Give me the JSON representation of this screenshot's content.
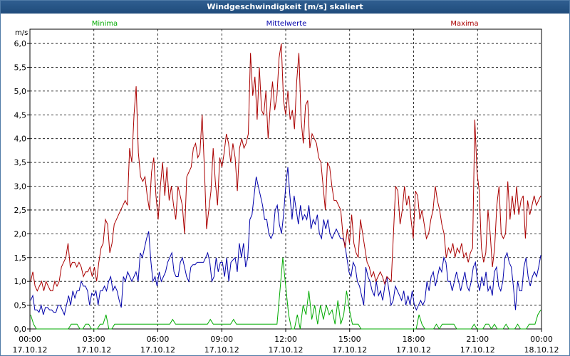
{
  "window": {
    "title": "Windgeschwindigkeit [m/s] skaliert"
  },
  "chart_data": {
    "type": "line",
    "ylabel": "m/s",
    "ylim": [
      0,
      6.3
    ],
    "yticks": [
      "0,0",
      "0,5",
      "1,0",
      "1,5",
      "2,0",
      "2,5",
      "3,0",
      "3,5",
      "4,0",
      "4,5",
      "5,0",
      "5,5",
      "6,0"
    ],
    "xticks": [
      {
        "time": "00:00",
        "date": "17.10.12"
      },
      {
        "time": "03:00",
        "date": "17.10.12"
      },
      {
        "time": "06:00",
        "date": "17.10.12"
      },
      {
        "time": "09:00",
        "date": "17.10.12"
      },
      {
        "time": "12:00",
        "date": "17.10.12"
      },
      {
        "time": "15:00",
        "date": "17.10.12"
      },
      {
        "time": "18:00",
        "date": "17.10.12"
      },
      {
        "time": "21:00",
        "date": "17.10.12"
      },
      {
        "time": "00:00",
        "date": "18.10.12"
      }
    ],
    "grid": true,
    "colors": {
      "minima": "#00aa00",
      "mittelwerte": "#0000aa",
      "maxima": "#aa0000",
      "grid": "#000000",
      "title_bg": "#2a5689"
    },
    "series": [
      {
        "name": "Minima",
        "color": "#00aa00",
        "values": [
          0.3,
          0.1,
          0,
          0,
          0,
          0,
          0,
          0,
          0,
          0,
          0,
          0,
          0,
          0,
          0.1,
          0.1,
          0.1,
          0,
          0,
          0.1,
          0.1,
          0,
          0,
          0,
          0.1,
          0.1,
          0.3,
          0,
          0,
          0.1,
          0.1,
          0.1,
          0.1,
          0.1,
          0.1,
          0.1,
          0.1,
          0.1,
          0.1,
          0.1,
          0.1,
          0.1,
          0.1,
          0.1,
          0.1,
          0.1,
          0.1,
          0.1,
          0.1,
          0.2,
          0.1,
          0.1,
          0.1,
          0.1,
          0.1,
          0.1,
          0.1,
          0.1,
          0.1,
          0.1,
          0.1,
          0.1,
          0.2,
          0.1,
          0.1,
          0.1,
          0.1,
          0.1,
          0.1,
          0.1,
          0.2,
          0.1,
          0.1,
          0.1,
          0.1,
          0.1,
          0.1,
          0.1,
          0.1,
          0.1,
          0.1,
          0.1,
          0.1,
          0.1,
          0.1,
          0.1,
          0.8,
          1.5,
          0.9,
          0.3,
          0,
          0,
          0.3,
          0,
          0.5,
          0.3,
          0.8,
          0.2,
          0.5,
          0.1,
          0.5,
          0.2,
          0.5,
          0.3,
          0.4,
          0.1,
          0.6,
          0.1,
          0.3,
          0.8,
          0.4,
          0.1,
          0.1,
          0.1,
          0,
          0,
          0,
          0,
          0,
          0,
          0,
          0,
          0,
          0,
          0,
          0,
          0,
          0,
          0,
          0,
          0,
          0,
          0,
          0,
          0.3,
          0.1,
          0,
          0,
          0,
          0,
          0.1,
          0,
          0.1,
          0.1,
          0.1,
          0.1,
          0.1,
          0,
          0,
          0,
          0,
          0,
          0,
          0.1,
          0,
          0,
          0,
          0.1,
          0.1,
          0,
          0.1,
          0,
          0,
          0,
          0.1,
          0,
          0,
          0,
          0.1,
          0,
          0,
          0,
          0.1,
          0.1,
          0.1,
          0.3,
          0.4
        ]
      },
      {
        "name": "Mittelwerte",
        "color": "#0000aa",
        "values": [
          0.6,
          0.7,
          0.4,
          0.4,
          0.35,
          0.5,
          0.3,
          0.45,
          0.45,
          0.4,
          0.4,
          0.35,
          0.35,
          0.5,
          0.5,
          0.4,
          0.3,
          0.5,
          0.7,
          0.5,
          0.8,
          0.65,
          0.8,
          0.8,
          1.0,
          0.9,
          0.9,
          0.8,
          0.5,
          0.75,
          0.7,
          0.8,
          0.5,
          0.8,
          0.8,
          0.9,
          0.8,
          1.0,
          1.1,
          0.8,
          0.9,
          0.8,
          0.6,
          0.45,
          1.1,
          1.0,
          1.2,
          1.1,
          1.0,
          1.1,
          1.2,
          1.0,
          1.6,
          1.5,
          1.7,
          1.9,
          2.05,
          1.45,
          1.0,
          1.1,
          0.9,
          1.2,
          1.0,
          1.1,
          1.2,
          1.4,
          1.5,
          1.6,
          1.2,
          1.1,
          1.1,
          1.4,
          1.5,
          1.3,
          1.1,
          1.0,
          1.3,
          1.35,
          1.35,
          1.4,
          1.4,
          1.4,
          1.4,
          1.5,
          1.6,
          1.4,
          1.0,
          1.1,
          1.5,
          1.2,
          1.4,
          1.4,
          1.1,
          1.5,
          1.0,
          1.4,
          1.45,
          1.5,
          1.2,
          1.8,
          1.5,
          1.8,
          1.3,
          1.5,
          2.3,
          2.4,
          2.8,
          3.2,
          3.0,
          2.8,
          2.6,
          2.3,
          2.3,
          2.0,
          1.9,
          2.0,
          2.5,
          2.6,
          2.2,
          2.0,
          2.4,
          3.0,
          3.4,
          2.8,
          2.3,
          2.8,
          2.5,
          2.2,
          2.6,
          2.3,
          2.4,
          2.3,
          2.6,
          2.1,
          2.3,
          2.2,
          2.4,
          2.0,
          1.9,
          2.3,
          2.1,
          2.3,
          2.0,
          1.9,
          2.0,
          2.1,
          2.0,
          1.9,
          1.9,
          1.8,
          1.5,
          1.2,
          1.1,
          1.4,
          1.3,
          1.0,
          0.9,
          0.7,
          0.5,
          1.3,
          1.1,
          1.0,
          0.8,
          0.7,
          1.0,
          0.7,
          0.8,
          0.6,
          0.9,
          1.1,
          0.8,
          0.5,
          0.6,
          0.9,
          0.8,
          0.7,
          0.6,
          0.8,
          0.5,
          0.7,
          0.5,
          0.8,
          0.5,
          0.4,
          0.5,
          0.6,
          0.5,
          0.6,
          1.0,
          0.8,
          1.1,
          1.2,
          0.9,
          1.1,
          1.3,
          1.2,
          1.5,
          1.4,
          1.0,
          1.0,
          0.8,
          1.0,
          1.2,
          1.0,
          0.8,
          1.0,
          1.2,
          0.9,
          0.8,
          1.0,
          1.3,
          1.4,
          1.0,
          0.8,
          1.1,
          0.9,
          1.2,
          0.8,
          0.9,
          0.7,
          1.2,
          1.3,
          0.9,
          0.8,
          1.0,
          1.5,
          1.6,
          1.4,
          1.3,
          0.9,
          0.4,
          1.0,
          0.8,
          0.8,
          1.3,
          1.5,
          1.1,
          0.9,
          1.1,
          1.2,
          1.1,
          1.3,
          1.55
        ]
      },
      {
        "name": "Maxima",
        "color": "#aa0000",
        "values": [
          1.0,
          1.2,
          0.9,
          0.8,
          0.9,
          1.0,
          0.8,
          1.0,
          0.9,
          0.8,
          0.8,
          1.0,
          0.9,
          1.0,
          1.3,
          1.4,
          1.5,
          1.8,
          1.3,
          1.4,
          1.4,
          1.3,
          1.4,
          1.3,
          1.1,
          1.2,
          1.2,
          1.3,
          1.1,
          1.3,
          1.0,
          1.4,
          1.7,
          1.8,
          2.3,
          2.2,
          1.6,
          1.8,
          2.2,
          2.3,
          2.4,
          2.5,
          2.6,
          2.7,
          2.6,
          3.8,
          3.5,
          4.5,
          5.1,
          3.7,
          3.2,
          3.1,
          3.2,
          2.8,
          2.5,
          3.3,
          3.6,
          2.8,
          2.3,
          3.0,
          3.5,
          2.8,
          3.4,
          2.7,
          3.0,
          2.6,
          2.3,
          3.0,
          2.8,
          2.6,
          2.0,
          3.2,
          3.3,
          3.4,
          3.8,
          3.9,
          3.6,
          3.7,
          4.5,
          3.4,
          2.1,
          2.5,
          2.9,
          3.8,
          3.1,
          2.6,
          3.6,
          3.4,
          3.7,
          4.1,
          3.9,
          3.5,
          3.9,
          3.6,
          2.9,
          3.8,
          4.0,
          3.8,
          3.9,
          4.1,
          5.8,
          4.9,
          5.3,
          4.4,
          5.5,
          4.6,
          4.5,
          5.0,
          4.0,
          4.7,
          5.2,
          4.6,
          4.9,
          5.7,
          6.0,
          4.8,
          4.5,
          5.0,
          4.4,
          4.6,
          4.2,
          5.2,
          5.8,
          4.4,
          3.9,
          4.7,
          4.8,
          3.8,
          4.1,
          4.0,
          3.9,
          3.6,
          3.5,
          3.0,
          2.5,
          3.5,
          3.4,
          3.0,
          2.7,
          2.7,
          2.6,
          2.5,
          2.0,
          1.7,
          2.1,
          1.8,
          2.4,
          1.8,
          1.6,
          1.5,
          2.3,
          2.0,
          1.7,
          1.4,
          1.3,
          1.1,
          1.2,
          1.0,
          1.1,
          1.2,
          1.1,
          0.95,
          1.1,
          1.05,
          1.0,
          2.0,
          3.0,
          2.9,
          2.2,
          2.5,
          3.0,
          2.6,
          2.8,
          2.3,
          1.9,
          2.9,
          2.8,
          2.3,
          2.5,
          2.2,
          1.9,
          2.0,
          2.3,
          2.5,
          3.0,
          2.7,
          2.5,
          2.2,
          2.0,
          1.5,
          1.7,
          1.6,
          1.8,
          1.5,
          1.7,
          1.6,
          1.8,
          1.5,
          1.6,
          1.4,
          1.6,
          1.7,
          4.4,
          3.3,
          2.9,
          1.7,
          1.4,
          1.6,
          2.5,
          2.0,
          1.3,
          1.7,
          2.6,
          3.0,
          2.0,
          1.9,
          2.0,
          3.1,
          2.3,
          2.8,
          2.4,
          3.0,
          2.4,
          2.7,
          2.8,
          1.9,
          2.7,
          2.4,
          2.6,
          2.8,
          2.6,
          2.7,
          2.8
        ]
      }
    ]
  }
}
